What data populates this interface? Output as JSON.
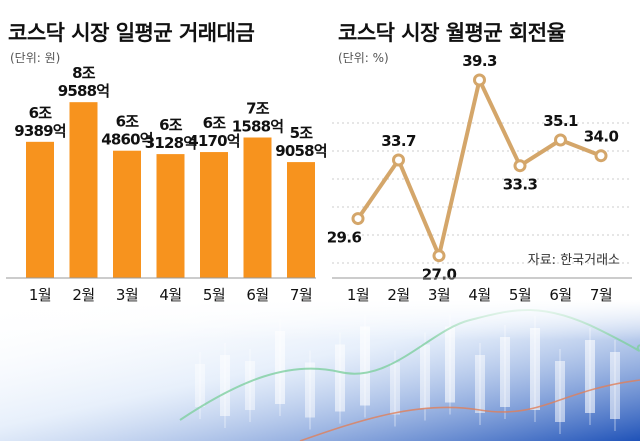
{
  "colors": {
    "bar": "#f7931e",
    "line": "#d4a66a",
    "marker_fill": "#ffffff",
    "background_accent": "#2a5fc4"
  },
  "chart_data": [
    {
      "type": "bar",
      "title": "코스닥 시장 일평균 거래대금",
      "unit": "(단위: 원)",
      "categories": [
        "1월",
        "2월",
        "3월",
        "4월",
        "5월",
        "6월",
        "7월"
      ],
      "values": [
        6.9389,
        8.9588,
        6.486,
        6.3128,
        6.417,
        7.1588,
        5.9058
      ],
      "value_labels": [
        [
          "6조",
          "9389억"
        ],
        [
          "8조",
          "9588억"
        ],
        [
          "6조",
          "4860억"
        ],
        [
          "6조",
          "3128억"
        ],
        [
          "6조",
          "4170억"
        ],
        [
          "7조",
          "1588억"
        ],
        [
          "5조",
          "9058억"
        ]
      ],
      "value_unit": "조원",
      "ylim": [
        0,
        10
      ]
    },
    {
      "type": "line",
      "title": "코스닥 시장 월평균 회전율",
      "unit": "(단위: %)",
      "categories": [
        "1월",
        "2월",
        "3월",
        "4월",
        "5월",
        "6월",
        "7월"
      ],
      "values": [
        29.6,
        33.7,
        27.0,
        39.3,
        33.3,
        35.1,
        34.0
      ],
      "value_labels": [
        "29.6",
        "33.7",
        "27.0",
        "39.3",
        "33.3",
        "35.1",
        "34.0"
      ],
      "ylim": [
        26,
        40
      ],
      "source": "자료: 한국거래소"
    }
  ]
}
